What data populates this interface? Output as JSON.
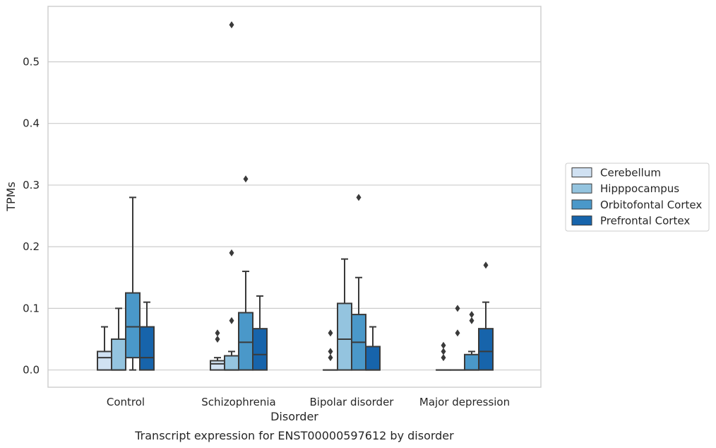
{
  "chart_data": {
    "type": "box",
    "caption": "Transcript expression for ENST00000597612 by disorder",
    "xlabel": "Disorder",
    "ylabel": "TPMs",
    "ylim": [
      -0.028,
      0.59
    ],
    "yticks": [
      0.0,
      0.1,
      0.2,
      0.3,
      0.4,
      0.5
    ],
    "ytick_labels": [
      "0.0",
      "0.1",
      "0.2",
      "0.3",
      "0.4",
      "0.5"
    ],
    "grid": true,
    "legend_position": "right",
    "categories": [
      "Control",
      "Schizophrenia",
      "Bipolar disorder",
      "Major depression"
    ],
    "series": [
      {
        "name": "Cerebellum",
        "color": "#d0e1f2",
        "boxes": [
          {
            "min": 0.0,
            "q1": 0.0,
            "median": 0.02,
            "q3": 0.03,
            "max": 0.07,
            "outliers": []
          },
          {
            "min": 0.0,
            "q1": 0.0,
            "median": 0.01,
            "q3": 0.015,
            "max": 0.02,
            "outliers": [
              0.05,
              0.06
            ]
          },
          {
            "min": 0.0,
            "q1": 0.0,
            "median": 0.0,
            "q3": 0.0,
            "max": 0.0,
            "outliers": [
              0.02,
              0.03,
              0.06
            ]
          },
          {
            "min": 0.0,
            "q1": 0.0,
            "median": 0.0,
            "q3": 0.0,
            "max": 0.0,
            "outliers": [
              0.02,
              0.03,
              0.04
            ]
          }
        ]
      },
      {
        "name": "Hipppocampus",
        "color": "#94c4df",
        "boxes": [
          {
            "min": 0.0,
            "q1": 0.0,
            "median": 0.0,
            "q3": 0.05,
            "max": 0.1,
            "outliers": []
          },
          {
            "min": 0.0,
            "q1": 0.0,
            "median": 0.0,
            "q3": 0.023,
            "max": 0.03,
            "outliers": [
              0.08,
              0.19,
              0.56
            ]
          },
          {
            "min": 0.0,
            "q1": 0.0,
            "median": 0.05,
            "q3": 0.108,
            "max": 0.18,
            "outliers": []
          },
          {
            "min": 0.0,
            "q1": 0.0,
            "median": 0.0,
            "q3": 0.0,
            "max": 0.0,
            "outliers": [
              0.06,
              0.1
            ]
          }
        ]
      },
      {
        "name": "Orbitofontal Cortex",
        "color": "#4a98c9",
        "boxes": [
          {
            "min": 0.0,
            "q1": 0.02,
            "median": 0.07,
            "q3": 0.125,
            "max": 0.28,
            "outliers": []
          },
          {
            "min": 0.0,
            "q1": 0.0,
            "median": 0.045,
            "q3": 0.093,
            "max": 0.16,
            "outliers": [
              0.31
            ]
          },
          {
            "min": 0.0,
            "q1": 0.0,
            "median": 0.045,
            "q3": 0.09,
            "max": 0.15,
            "outliers": [
              0.28
            ]
          },
          {
            "min": 0.0,
            "q1": 0.0,
            "median": 0.0,
            "q3": 0.025,
            "max": 0.03,
            "outliers": [
              0.08,
              0.09
            ]
          }
        ]
      },
      {
        "name": "Prefrontal Cortex",
        "color": "#1764ab",
        "boxes": [
          {
            "min": 0.0,
            "q1": 0.0,
            "median": 0.02,
            "q3": 0.07,
            "max": 0.11,
            "outliers": []
          },
          {
            "min": 0.0,
            "q1": 0.0,
            "median": 0.025,
            "q3": 0.067,
            "max": 0.12,
            "outliers": []
          },
          {
            "min": 0.0,
            "q1": 0.0,
            "median": 0.0,
            "q3": 0.038,
            "max": 0.07,
            "outliers": []
          },
          {
            "min": 0.0,
            "q1": 0.0,
            "median": 0.03,
            "q3": 0.067,
            "max": 0.11,
            "outliers": [
              0.17
            ]
          }
        ]
      }
    ],
    "style": {
      "line_color": "#3a3a3a",
      "grid_color": "#cccccc",
      "frame_color": "#cccccc"
    }
  }
}
